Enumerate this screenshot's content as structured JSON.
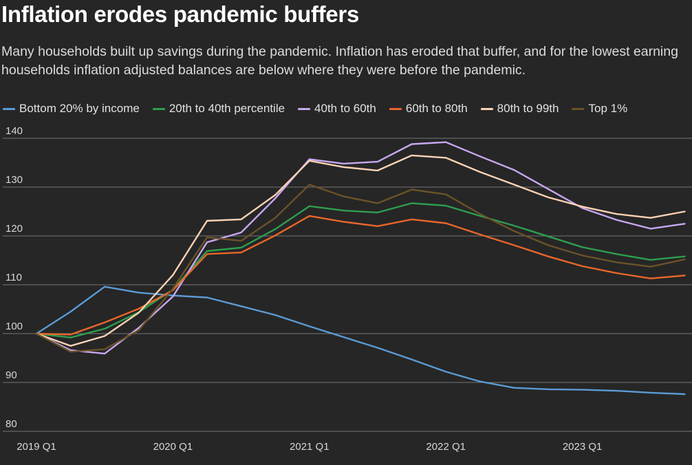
{
  "title": "Inflation erodes pandemic buffers",
  "subtitle": "Many households built up savings during the pandemic. Inflation has eroded that buffer, and for the lowest earning households inflation adjusted balances are below where they were before the pandemic.",
  "legend": [
    {
      "label": "Bottom 20% by income",
      "color": "#5b9bd5"
    },
    {
      "label": "20th to 40th percentile",
      "color": "#2e9e4f"
    },
    {
      "label": "40th to 60th",
      "color": "#c7a8f2"
    },
    {
      "label": "60th to 80th",
      "color": "#e8672a"
    },
    {
      "label": "80th to 99th",
      "color": "#fcd2b4"
    },
    {
      "label": "Top 1%",
      "color": "#6b5328"
    }
  ],
  "chart_data": {
    "type": "line",
    "title": "Inflation erodes pandemic buffers",
    "xlabel": "",
    "ylabel": "",
    "x_tick_labels": [
      "2019 Q1",
      "2020 Q1",
      "2021 Q1",
      "2022 Q1",
      "2023 Q1"
    ],
    "x_tick_indices": [
      0,
      4,
      8,
      12,
      16
    ],
    "y_ticks": [
      80,
      90,
      100,
      110,
      120,
      130,
      140
    ],
    "ylim": [
      80,
      140
    ],
    "grid": true,
    "legend_position": "top-left",
    "series": [
      {
        "name": "Bottom 20% by income",
        "color": "#5b9bd5",
        "values": [
          100,
          104.5,
          109.6,
          108.4,
          107.8,
          107.4,
          105.6,
          103.8,
          101.5,
          99.3,
          97.1,
          94.7,
          92.2,
          90.2,
          88.9,
          88.6,
          88.5,
          88.3,
          87.9,
          87.6
        ]
      },
      {
        "name": "20th to 40th percentile",
        "color": "#2e9e4f",
        "values": [
          100,
          99.2,
          101.0,
          104.4,
          109.0,
          116.9,
          117.6,
          121.4,
          126.1,
          125.2,
          124.8,
          126.7,
          126.2,
          124.1,
          122.1,
          119.9,
          117.7,
          116.3,
          115.1,
          115.8
        ]
      },
      {
        "name": "40th to 60th",
        "color": "#c7a8f2",
        "values": [
          100,
          96.6,
          95.9,
          101.2,
          107.6,
          118.7,
          120.7,
          127.7,
          135.7,
          134.8,
          135.2,
          138.8,
          139.2,
          136.3,
          133.5,
          129.6,
          125.7,
          123.3,
          121.5,
          122.5
        ]
      },
      {
        "name": "60th to 80th",
        "color": "#e8672a",
        "values": [
          100,
          99.8,
          102.3,
          105.1,
          108.9,
          116.3,
          116.6,
          120.1,
          124.1,
          122.9,
          122.0,
          123.4,
          122.6,
          120.3,
          118.1,
          115.8,
          113.8,
          112.4,
          111.3,
          111.9
        ]
      },
      {
        "name": "80th to 99th",
        "color": "#fcd2b4",
        "values": [
          100,
          97.5,
          99.5,
          104.3,
          112.0,
          123.1,
          123.4,
          128.4,
          135.4,
          134.1,
          133.4,
          136.5,
          136.0,
          133.1,
          130.5,
          127.9,
          126.0,
          124.5,
          123.7,
          125.0
        ]
      },
      {
        "name": "Top 1%",
        "color": "#6b5328",
        "values": [
          100,
          96.3,
          96.8,
          100.7,
          109.2,
          119.7,
          119.0,
          123.7,
          130.5,
          128.1,
          126.7,
          129.5,
          128.5,
          124.5,
          121.0,
          118.1,
          116.0,
          114.6,
          113.7,
          115.2
        ]
      }
    ]
  }
}
